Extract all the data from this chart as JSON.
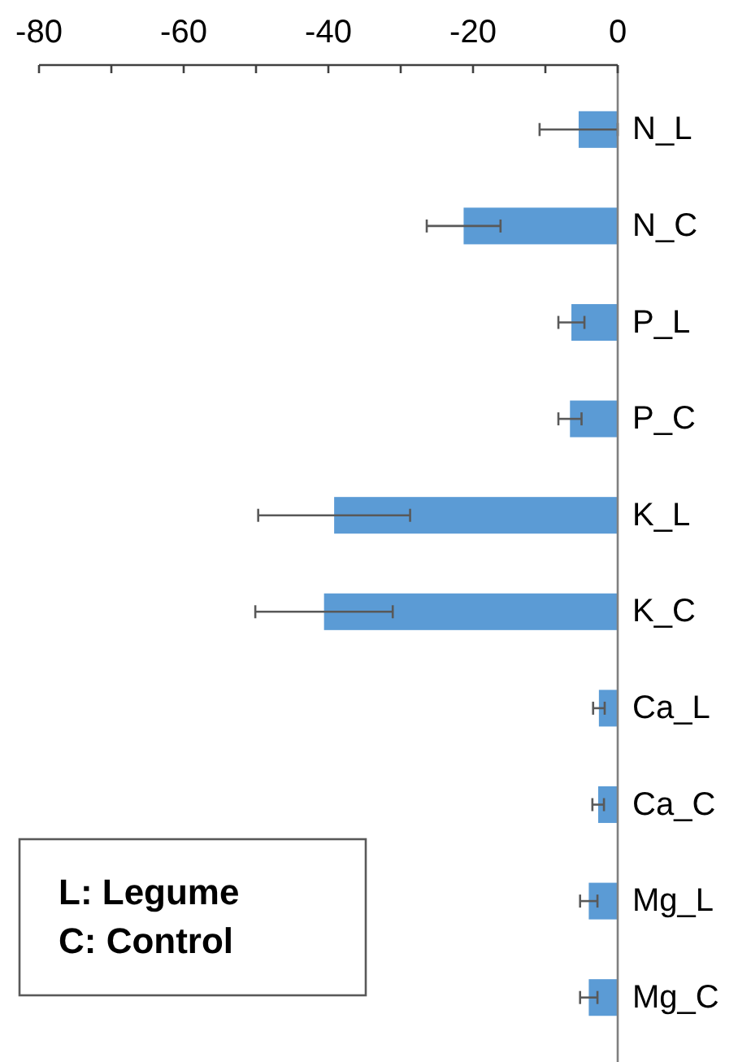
{
  "chart_data": {
    "type": "bar",
    "orientation": "horizontal",
    "categories": [
      "N_L",
      "N_C",
      "P_L",
      "P_C",
      "K_L",
      "K_C",
      "Ca_L",
      "Ca_C",
      "Mg_L",
      "Mg_C"
    ],
    "values": [
      -5.4,
      -21.3,
      -6.4,
      -6.6,
      -39.2,
      -40.6,
      -2.6,
      -2.7,
      -4.0,
      -4.0
    ],
    "errors": [
      5.4,
      5.1,
      1.8,
      1.6,
      10.5,
      9.5,
      0.8,
      0.8,
      1.2,
      1.2
    ],
    "color": "#5b9bd5",
    "xlim": [
      -80,
      0
    ],
    "xticks": [
      -80,
      {
        "value": -70,
        "label": null
      },
      -60,
      {
        "value": -50,
        "label": null
      },
      -40,
      {
        "value": -30,
        "label": null
      },
      -20,
      {
        "value": -10,
        "label": null
      },
      0
    ],
    "annotations": [
      "L: Legume\nC: Control"
    ]
  }
}
